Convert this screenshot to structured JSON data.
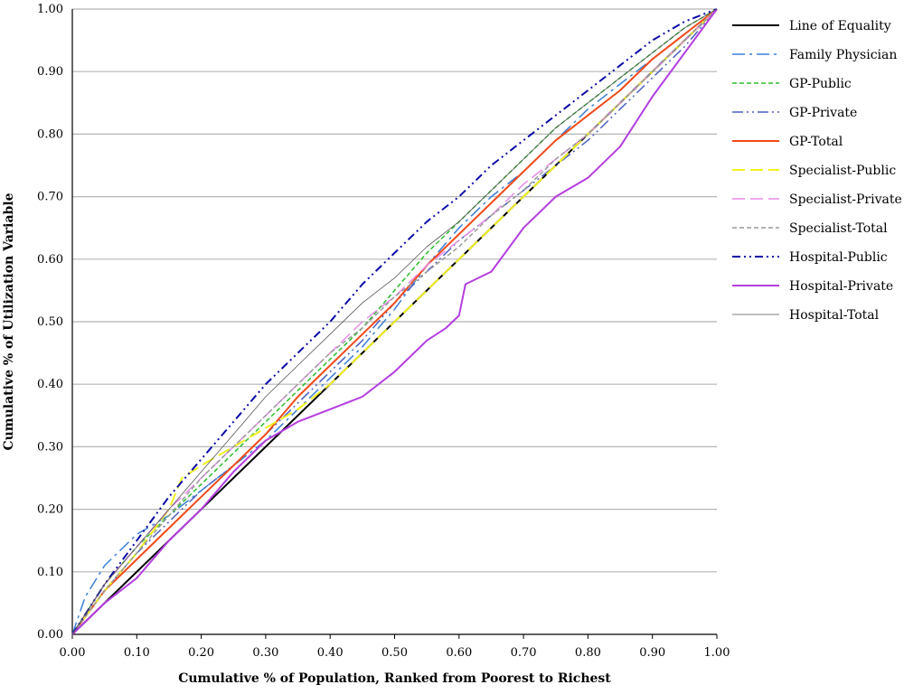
{
  "chart_data": {
    "type": "line",
    "xlabel": "Cumulative % of Population, Ranked from Poorest to Richest",
    "ylabel": "Cumulative % of Utilization Variable",
    "xlim": [
      0,
      1
    ],
    "ylim": [
      0,
      1
    ],
    "x_ticks": [
      "0.00",
      "0.10",
      "0.20",
      "0.30",
      "0.40",
      "0.50",
      "0.60",
      "0.70",
      "0.80",
      "0.90",
      "1.00"
    ],
    "y_ticks": [
      "0.00",
      "0.10",
      "0.20",
      "0.30",
      "0.40",
      "0.50",
      "0.60",
      "0.70",
      "0.80",
      "0.90",
      "1.00"
    ],
    "grid": "horizontal",
    "legend_position": "right",
    "series": [
      {
        "name": "Line of Equality",
        "color": "#000000",
        "dash": "solid",
        "width": 2,
        "x": [
          0,
          1
        ],
        "y": [
          0,
          1
        ]
      },
      {
        "name": "Family Physician",
        "color": "#3a7fd5",
        "dash": "longdashdot",
        "width": 1.5,
        "x": [
          0,
          0.02,
          0.05,
          0.08,
          0.1,
          0.15,
          0.2,
          0.25,
          0.3,
          0.35,
          0.4,
          0.45,
          0.5,
          0.55,
          0.6,
          0.65,
          0.7,
          0.75,
          0.8,
          0.85,
          0.9,
          0.95,
          1.0
        ],
        "y": [
          0,
          0.06,
          0.11,
          0.14,
          0.16,
          0.19,
          0.23,
          0.27,
          0.31,
          0.36,
          0.41,
          0.46,
          0.52,
          0.59,
          0.65,
          0.7,
          0.74,
          0.79,
          0.84,
          0.88,
          0.92,
          0.96,
          1.0
        ]
      },
      {
        "name": "GP-Public",
        "color": "#2bbd2b",
        "dash": "dash",
        "width": 1.5,
        "x": [
          0,
          0.05,
          0.1,
          0.15,
          0.2,
          0.25,
          0.3,
          0.35,
          0.4,
          0.45,
          0.5,
          0.55,
          0.6,
          0.65,
          0.7,
          0.75,
          0.8,
          0.85,
          0.9,
          0.95,
          1.0
        ],
        "y": [
          0,
          0.08,
          0.14,
          0.19,
          0.24,
          0.29,
          0.34,
          0.39,
          0.44,
          0.49,
          0.55,
          0.61,
          0.66,
          0.71,
          0.76,
          0.81,
          0.85,
          0.89,
          0.93,
          0.97,
          1.0
        ]
      },
      {
        "name": "GP-Private",
        "color": "#4a5fbf",
        "dash": "longdashdotdot",
        "width": 1.5,
        "x": [
          0,
          0.05,
          0.1,
          0.15,
          0.2,
          0.25,
          0.3,
          0.35,
          0.4,
          0.45,
          0.5,
          0.55,
          0.6,
          0.65,
          0.7,
          0.75,
          0.8,
          0.85,
          0.9,
          0.95,
          1.0
        ],
        "y": [
          0,
          0.07,
          0.13,
          0.18,
          0.23,
          0.27,
          0.32,
          0.37,
          0.42,
          0.47,
          0.53,
          0.58,
          0.63,
          0.67,
          0.71,
          0.75,
          0.79,
          0.84,
          0.89,
          0.94,
          1.0
        ]
      },
      {
        "name": "GP-Total",
        "color": "#f04a1a",
        "dash": "solid",
        "width": 2,
        "x": [
          0,
          0.05,
          0.1,
          0.15,
          0.2,
          0.25,
          0.3,
          0.35,
          0.4,
          0.45,
          0.5,
          0.55,
          0.6,
          0.65,
          0.7,
          0.75,
          0.8,
          0.85,
          0.9,
          0.95,
          1.0
        ],
        "y": [
          0,
          0.07,
          0.12,
          0.17,
          0.22,
          0.27,
          0.32,
          0.38,
          0.43,
          0.48,
          0.53,
          0.59,
          0.64,
          0.69,
          0.74,
          0.79,
          0.83,
          0.87,
          0.92,
          0.96,
          1.0
        ]
      },
      {
        "name": "Specialist-Public",
        "color": "#f0f020",
        "dash": "longdash",
        "width": 2,
        "x": [
          0,
          0.05,
          0.1,
          0.15,
          0.17,
          0.2,
          0.25,
          0.3,
          0.35,
          0.4,
          0.45,
          0.5,
          0.55,
          0.6,
          0.65,
          0.7,
          0.75,
          0.8,
          0.85,
          0.9,
          0.95,
          1.0
        ],
        "y": [
          0,
          0.07,
          0.13,
          0.2,
          0.25,
          0.27,
          0.3,
          0.33,
          0.36,
          0.4,
          0.45,
          0.5,
          0.55,
          0.6,
          0.65,
          0.7,
          0.75,
          0.8,
          0.85,
          0.9,
          0.95,
          1.0
        ]
      },
      {
        "name": "Specialist-Private",
        "color": "#e88ce8",
        "dash": "longdash",
        "width": 1.5,
        "x": [
          0,
          0.05,
          0.1,
          0.15,
          0.2,
          0.25,
          0.3,
          0.35,
          0.4,
          0.45,
          0.5,
          0.55,
          0.6,
          0.65,
          0.7,
          0.75,
          0.8,
          0.85,
          0.9,
          0.95,
          1.0
        ],
        "y": [
          0,
          0.08,
          0.14,
          0.2,
          0.25,
          0.3,
          0.35,
          0.4,
          0.45,
          0.5,
          0.54,
          0.59,
          0.63,
          0.67,
          0.72,
          0.76,
          0.8,
          0.85,
          0.9,
          0.95,
          1.0
        ]
      },
      {
        "name": "Specialist-Total",
        "color": "#999999",
        "dash": "dash",
        "width": 1.5,
        "x": [
          0,
          0.05,
          0.1,
          0.15,
          0.2,
          0.25,
          0.3,
          0.35,
          0.4,
          0.45,
          0.5,
          0.55,
          0.6,
          0.65,
          0.7,
          0.75,
          0.8,
          0.85,
          0.9,
          0.95,
          1.0
        ],
        "y": [
          0,
          0.07,
          0.13,
          0.19,
          0.25,
          0.3,
          0.35,
          0.4,
          0.45,
          0.49,
          0.54,
          0.58,
          0.62,
          0.67,
          0.71,
          0.76,
          0.8,
          0.85,
          0.9,
          0.95,
          1.0
        ]
      },
      {
        "name": "Hospital-Public",
        "color": "#0a0aa8",
        "dash": "dashdotdot",
        "width": 2,
        "x": [
          0,
          0.05,
          0.1,
          0.15,
          0.2,
          0.25,
          0.3,
          0.35,
          0.4,
          0.45,
          0.5,
          0.55,
          0.6,
          0.65,
          0.7,
          0.75,
          0.8,
          0.85,
          0.9,
          0.95,
          1.0
        ],
        "y": [
          0,
          0.08,
          0.15,
          0.22,
          0.28,
          0.34,
          0.4,
          0.45,
          0.5,
          0.56,
          0.61,
          0.66,
          0.7,
          0.75,
          0.79,
          0.83,
          0.87,
          0.91,
          0.95,
          0.98,
          1.0
        ]
      },
      {
        "name": "Hospital-Private",
        "color": "#b43ee0",
        "dash": "solid",
        "width": 2,
        "x": [
          0,
          0.05,
          0.1,
          0.15,
          0.2,
          0.25,
          0.3,
          0.35,
          0.4,
          0.45,
          0.5,
          0.55,
          0.58,
          0.6,
          0.61,
          0.65,
          0.7,
          0.75,
          0.8,
          0.85,
          0.9,
          0.95,
          1.0
        ],
        "y": [
          0,
          0.05,
          0.09,
          0.15,
          0.2,
          0.26,
          0.31,
          0.34,
          0.36,
          0.38,
          0.42,
          0.47,
          0.49,
          0.51,
          0.56,
          0.58,
          0.65,
          0.7,
          0.73,
          0.78,
          0.86,
          0.93,
          1.0
        ]
      },
      {
        "name": "Hospital-Total",
        "color": "#555555",
        "dash": "solid",
        "width": 0.8,
        "x": [
          0,
          0.05,
          0.1,
          0.15,
          0.2,
          0.25,
          0.3,
          0.35,
          0.4,
          0.45,
          0.5,
          0.55,
          0.6,
          0.65,
          0.7,
          0.75,
          0.8,
          0.85,
          0.9,
          0.95,
          1.0
        ],
        "y": [
          0,
          0.08,
          0.14,
          0.2,
          0.26,
          0.32,
          0.38,
          0.43,
          0.48,
          0.53,
          0.57,
          0.62,
          0.66,
          0.71,
          0.76,
          0.81,
          0.85,
          0.89,
          0.93,
          0.97,
          1.0
        ]
      }
    ]
  }
}
